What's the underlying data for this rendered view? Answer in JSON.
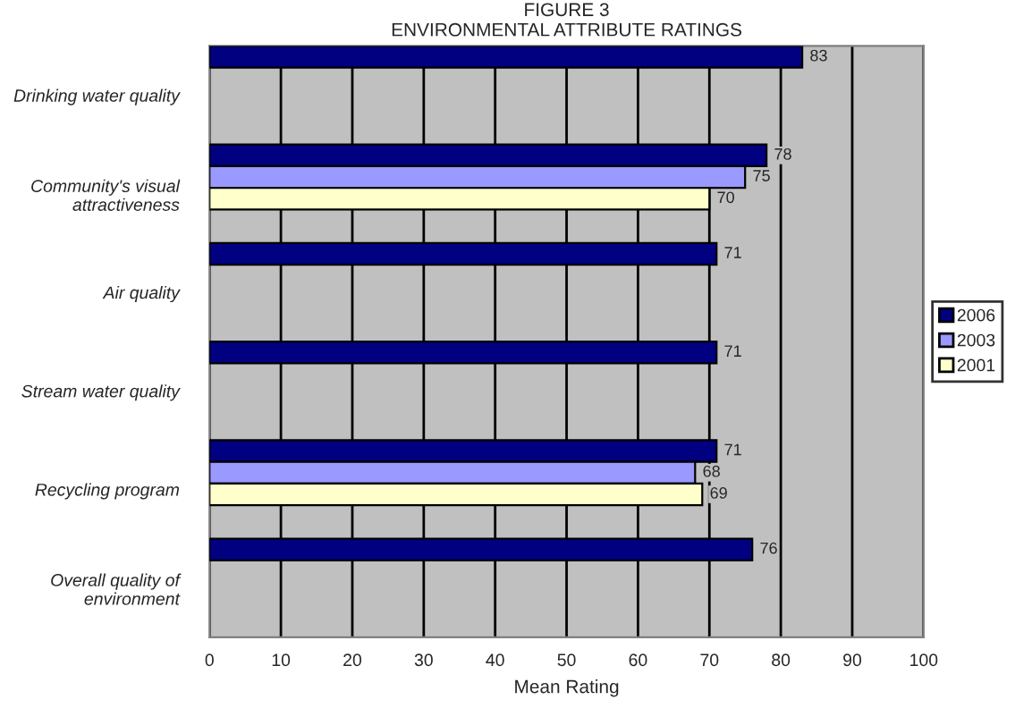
{
  "chart_data": {
    "type": "bar",
    "orientation": "horizontal",
    "title": "FIGURE 3",
    "subtitle": "ENVIRONMENTAL ATTRIBUTE RATINGS",
    "xlabel": "Mean Rating",
    "categories": [
      "Drinking water quality",
      "Community's visual\nattractiveness",
      "Air quality",
      "Stream water quality",
      "Recycling program",
      "Overall quality of\nenvironment"
    ],
    "series": [
      {
        "name": "2006",
        "color": "#000080",
        "values": [
          83,
          78,
          71,
          71,
          71,
          76
        ]
      },
      {
        "name": "2003",
        "color": "#9999ff",
        "values": [
          null,
          75,
          null,
          null,
          68,
          null
        ]
      },
      {
        "name": "2001",
        "color": "#ffffcc",
        "values": [
          null,
          70,
          null,
          null,
          69,
          null
        ]
      }
    ],
    "xlim": [
      0,
      100
    ],
    "xticks": [
      0,
      10,
      20,
      30,
      40,
      50,
      60,
      70,
      80,
      90,
      100
    ],
    "grid": "x",
    "legend": "right",
    "data_labels": true
  }
}
